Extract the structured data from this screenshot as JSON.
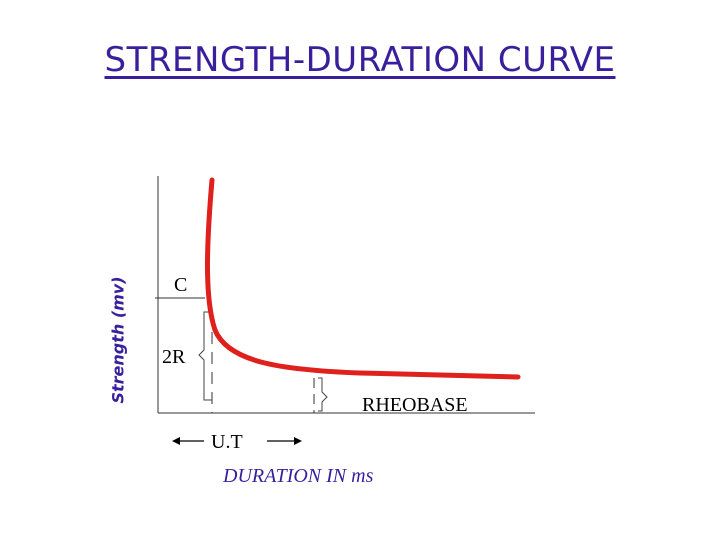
{
  "title": "STRENGTH-DURATION CURVE",
  "y_axis_label": "Strength (mv)",
  "x_axis_label": "DURATION IN ms",
  "labels": {
    "chronaxie": "C",
    "twice_rheobase": "2R",
    "rheobase": "RHEOBASE",
    "utilization_time": "U.T"
  },
  "colors": {
    "title": "#3a1f9c",
    "curve": "#e0201c",
    "axis": "#333333"
  }
}
